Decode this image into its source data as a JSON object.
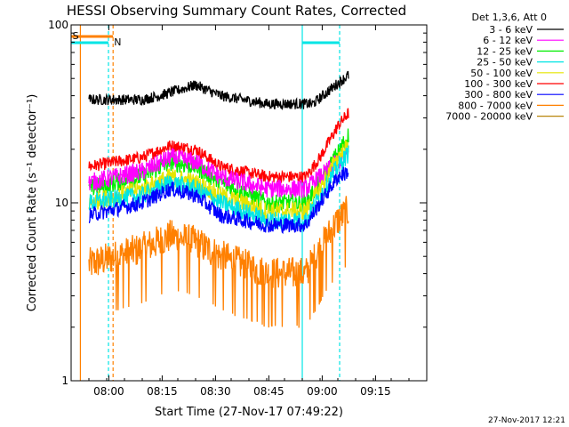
{
  "chart_data": {
    "type": "line",
    "title": "HESSI Observing Summary Count Rates, Corrected",
    "xlabel": "Start Time (27-Nov-17 07:49:22)",
    "ylabel": "Corrected Count Rate (s⁻¹ detector⁻¹)",
    "xlim_minutes_after_0749": [
      0,
      100
    ],
    "ylim": [
      1,
      100
    ],
    "yscale": "log",
    "x_tick_labels": [
      "08:00",
      "08:15",
      "08:30",
      "08:45",
      "09:00",
      "09:15"
    ],
    "y_tick_labels": [
      "1",
      "10",
      "100"
    ],
    "legend_title": "Det 1,3,6, Att 0",
    "legend_position": "right, outside plot",
    "flag_labels": [
      "S",
      "N"
    ],
    "footer_timestamp": "27-Nov-2017 12:21",
    "flags": {
      "saa_color": "#ff8000",
      "night_color": "#00e5e5"
    },
    "series": [
      {
        "name": "3 - 6 keV",
        "color": "#000000",
        "noise": 0.07,
        "x": [
          5,
          20,
          25,
          35,
          42,
          55,
          68,
          75,
          78
        ],
        "y": [
          38,
          38,
          40,
          46,
          40,
          36,
          36,
          47,
          52
        ]
      },
      {
        "name": "6 - 12 keV",
        "color": "#ff00ff",
        "noise": 0.12,
        "x": [
          5,
          20,
          28,
          35,
          42,
          55,
          66,
          70,
          75,
          78
        ],
        "y": [
          13,
          15,
          18,
          17,
          14,
          12,
          12,
          14,
          17,
          19
        ]
      },
      {
        "name": "12 - 25 keV",
        "color": "#00ee00",
        "noise": 0.12,
        "x": [
          5,
          20,
          28,
          35,
          42,
          55,
          66,
          70,
          75,
          78
        ],
        "y": [
          12,
          14,
          17,
          16,
          13,
          10,
          10,
          13,
          19,
          24
        ]
      },
      {
        "name": "25 - 50 keV",
        "color": "#00e5e5",
        "noise": 0.12,
        "x": [
          5,
          20,
          28,
          35,
          42,
          55,
          66,
          70,
          75,
          78
        ],
        "y": [
          10,
          11,
          13,
          12,
          10,
          8,
          8,
          11,
          16,
          19
        ]
      },
      {
        "name": "50 - 100 keV",
        "color": "#e5e500",
        "noise": 0.12,
        "x": [
          5,
          20,
          28,
          35,
          42,
          55,
          66,
          70,
          75,
          78
        ],
        "y": [
          10,
          12,
          14,
          13,
          11,
          9,
          9,
          12,
          18,
          21
        ]
      },
      {
        "name": "100 - 300 keV",
        "color": "#ff0000",
        "noise": 0.08,
        "x": [
          5,
          20,
          28,
          35,
          42,
          55,
          66,
          70,
          75,
          78
        ],
        "y": [
          16,
          18,
          21,
          20,
          16,
          14,
          14,
          18,
          27,
          32
        ]
      },
      {
        "name": "300 - 800 keV",
        "color": "#0000ff",
        "noise": 0.1,
        "x": [
          5,
          20,
          28,
          35,
          42,
          55,
          66,
          70,
          75,
          78
        ],
        "y": [
          8.5,
          10,
          12,
          11,
          8.5,
          7.5,
          7.5,
          10,
          14,
          15
        ]
      },
      {
        "name": "800 - 7000 keV",
        "color": "#ff8000",
        "noise": 0.22,
        "x": [
          5,
          20,
          28,
          35,
          42,
          55,
          66,
          70,
          75,
          78
        ],
        "y": [
          4.5,
          5.5,
          6.5,
          6,
          5,
          4,
          4,
          5.5,
          8,
          9
        ]
      },
      {
        "name": "7000 - 20000 keV",
        "color": "#b8860b",
        "noise": 0,
        "x": [],
        "y": []
      }
    ]
  }
}
